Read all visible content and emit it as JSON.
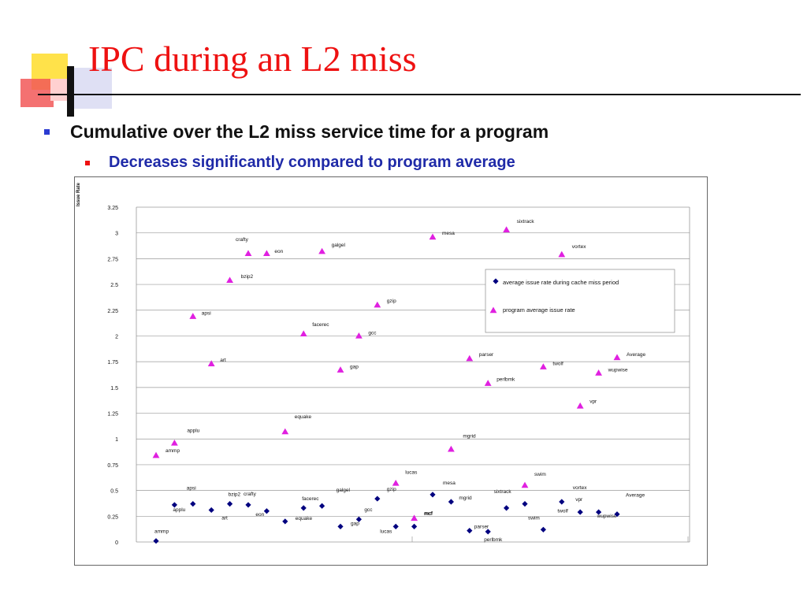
{
  "slide": {
    "title": "IPC during an L2 miss",
    "bullets": [
      "Cumulative over the L2 miss service time for a program",
      "Decreases significantly compared to program average"
    ]
  },
  "chart_data": {
    "type": "scatter",
    "ylabel": "Issue Rate",
    "ylim": [
      0,
      3.25
    ],
    "yticks": [
      "0",
      "0.25",
      "0.5",
      "0.75",
      "1",
      "1.25",
      "1.5",
      "1.75",
      "2",
      "2.25",
      "2.5",
      "2.75",
      "3",
      "3.25"
    ],
    "grid": true,
    "legend_position": "top-right",
    "categories": [
      "ammp",
      "applu",
      "apsi",
      "art",
      "bzip2",
      "crafty",
      "eon",
      "equake",
      "facerec",
      "galgel",
      "gap",
      "gcc",
      "gzip",
      "lucas",
      "mcf",
      "mesa",
      "mgrid",
      "parser",
      "perlbmk",
      "sixtrack",
      "swim",
      "twolf",
      "vortex",
      "vpr",
      "wupwise",
      "Average"
    ],
    "series": [
      {
        "name": "average issue rate during cache miss period",
        "marker": "diamond",
        "color": "#00007f",
        "values": [
          0.01,
          0.36,
          0.37,
          0.31,
          0.37,
          0.36,
          0.3,
          0.2,
          0.33,
          0.35,
          0.15,
          0.22,
          0.42,
          0.15,
          0.15,
          0.46,
          0.39,
          0.11,
          0.1,
          0.33,
          0.37,
          0.12,
          0.39,
          0.29,
          0.29,
          0.27
        ]
      },
      {
        "name": "program average issue rate",
        "marker": "triangle",
        "color": "#e020e0",
        "values": [
          0.84,
          0.96,
          2.19,
          1.73,
          2.54,
          2.8,
          2.8,
          1.07,
          2.02,
          2.82,
          1.67,
          2.0,
          2.3,
          0.57,
          0.23,
          2.96,
          0.9,
          1.78,
          1.54,
          3.03,
          0.55,
          1.7,
          2.79,
          1.32,
          1.64,
          1.79
        ]
      }
    ]
  }
}
